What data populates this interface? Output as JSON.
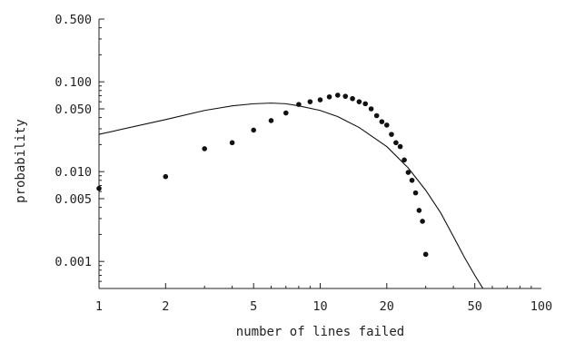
{
  "chart_data": {
    "type": "scatter",
    "xlabel": "number of lines failed",
    "ylabel": "probability",
    "xscale": "log",
    "yscale": "log",
    "xlim": [
      1,
      100
    ],
    "ylim": [
      0.0005,
      0.5
    ],
    "x_ticks": [
      1,
      2,
      5,
      10,
      20,
      50,
      100
    ],
    "x_tick_labels": [
      "1",
      "2",
      "5",
      "10",
      "20",
      "50",
      "100"
    ],
    "y_ticks": [
      0.001,
      0.005,
      0.01,
      0.05,
      0.1,
      0.5
    ],
    "y_tick_labels": [
      "0.001",
      "0.005",
      "0.010",
      "0.050",
      "0.100",
      "0.500"
    ],
    "grid": false,
    "series": [
      {
        "kind": "points",
        "color": "#111111",
        "x": [
          1,
          2,
          3,
          4,
          5,
          6,
          7,
          8,
          9,
          10,
          11,
          12,
          13,
          14,
          15,
          16,
          17,
          18,
          19,
          20,
          21,
          22,
          23,
          24,
          25,
          26,
          27,
          28,
          29,
          30
        ],
        "y": [
          0.0065,
          0.0088,
          0.018,
          0.021,
          0.029,
          0.037,
          0.045,
          0.056,
          0.06,
          0.063,
          0.068,
          0.071,
          0.069,
          0.065,
          0.06,
          0.057,
          0.05,
          0.042,
          0.036,
          0.033,
          0.026,
          0.021,
          0.019,
          0.0135,
          0.0098,
          0.008,
          0.0058,
          0.0037,
          0.0028,
          0.0012
        ]
      },
      {
        "kind": "line",
        "color": "#111111",
        "x": [
          1,
          2,
          3,
          4,
          5,
          6,
          7,
          8,
          10,
          12,
          15,
          20,
          25,
          30,
          35,
          40,
          45,
          50,
          55,
          57
        ],
        "y": [
          0.026,
          0.038,
          0.048,
          0.054,
          0.057,
          0.058,
          0.057,
          0.054,
          0.048,
          0.041,
          0.031,
          0.019,
          0.011,
          0.0062,
          0.0035,
          0.0019,
          0.0011,
          0.0007,
          0.00048,
          0.00042
        ]
      }
    ]
  }
}
